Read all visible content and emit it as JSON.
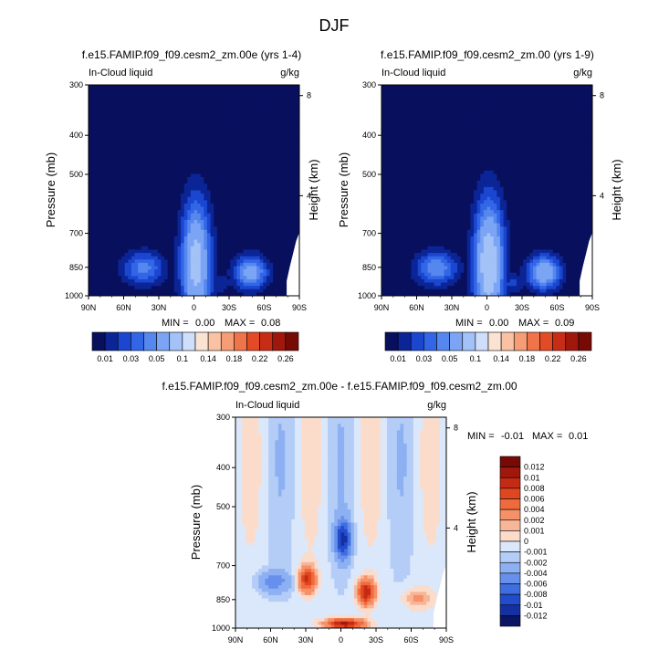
{
  "figure": {
    "title": "DJF"
  },
  "chart_data": [
    {
      "type": "heatmap",
      "title": "f.e15.FAMIP.f09_f09.cesm2_zm.00e (yrs 1-4)",
      "left_label": "In-Cloud liquid",
      "right_label": "g/kg",
      "xlabel": "",
      "ylabel": "Pressure (mb)",
      "ylabel_right": "Height (km)",
      "x_ticks": [
        "90N",
        "60N",
        "30N",
        "0",
        "30S",
        "60S",
        "90S"
      ],
      "y_ticks": [
        "300",
        "400",
        "500",
        "700",
        "850",
        "1000"
      ],
      "y_ticks_right": [
        "8",
        "4"
      ],
      "min_label": "MIN =",
      "min_value": "0.00",
      "max_label": "MAX =",
      "max_value": "0.08",
      "levels": [
        "0.01",
        "0.03",
        "0.05",
        "0.1",
        "0.14",
        "0.18",
        "0.22",
        "0.26"
      ],
      "peak_value": 0.08
    },
    {
      "type": "heatmap",
      "title": "f.e15.FAMIP.f09_f09.cesm2_zm.00 (yrs 1-9)",
      "left_label": "In-Cloud liquid",
      "right_label": "g/kg",
      "xlabel": "",
      "ylabel": "Pressure (mb)",
      "ylabel_right": "Height (km)",
      "x_ticks": [
        "90N",
        "60N",
        "30N",
        "0",
        "30S",
        "60S",
        "90S"
      ],
      "y_ticks": [
        "300",
        "400",
        "500",
        "700",
        "850",
        "1000"
      ],
      "y_ticks_right": [
        "8",
        "4"
      ],
      "min_label": "MIN =",
      "min_value": "0.00",
      "max_label": "MAX =",
      "max_value": "0.09",
      "levels": [
        "0.01",
        "0.03",
        "0.05",
        "0.1",
        "0.14",
        "0.18",
        "0.22",
        "0.26"
      ],
      "peak_value": 0.09
    },
    {
      "type": "heatmap",
      "title": "f.e15.FAMIP.f09_f09.cesm2_zm.00e - f.e15.FAMIP.f09_f09.cesm2_zm.00",
      "left_label": "In-Cloud liquid",
      "right_label": "g/kg",
      "xlabel": "",
      "ylabel": "Pressure (mb)",
      "ylabel_right": "Height (km)",
      "x_ticks": [
        "90N",
        "60N",
        "30N",
        "0",
        "30S",
        "60S",
        "90S"
      ],
      "y_ticks": [
        "300",
        "400",
        "500",
        "700",
        "850",
        "1000"
      ],
      "y_ticks_right": [
        "8",
        "4"
      ],
      "min_label": "MIN =",
      "min_value": "-0.01",
      "max_label": "MAX =",
      "max_value": "0.01",
      "levels": [
        "0.012",
        "0.01",
        "0.008",
        "0.006",
        "0.004",
        "0.002",
        "0.001",
        "0",
        "-0.001",
        "-0.002",
        "-0.004",
        "-0.006",
        "-0.008",
        "-0.01",
        "-0.012"
      ]
    }
  ],
  "colors": {
    "abs_palette": [
      "#08105e",
      "#0b2596",
      "#1a46d0",
      "#3266e6",
      "#5587ef",
      "#7ba5f4",
      "#a3c2f7",
      "#cfdffb",
      "#fbe3d4",
      "#f8c2a3",
      "#f59d74",
      "#ef7449",
      "#e34b26",
      "#c72d16",
      "#a0170c",
      "#780a05"
    ],
    "diff_palette": [
      "#780a05",
      "#a0170c",
      "#c52a14",
      "#e0461f",
      "#ef6a3d",
      "#f69068",
      "#f8b699",
      "#fbdccb",
      "#dbe8fb",
      "#b4cdf7",
      "#8cb0f2",
      "#6690eb",
      "#3f6ee1",
      "#234ccc",
      "#1530a1",
      "#0a1663"
    ]
  }
}
